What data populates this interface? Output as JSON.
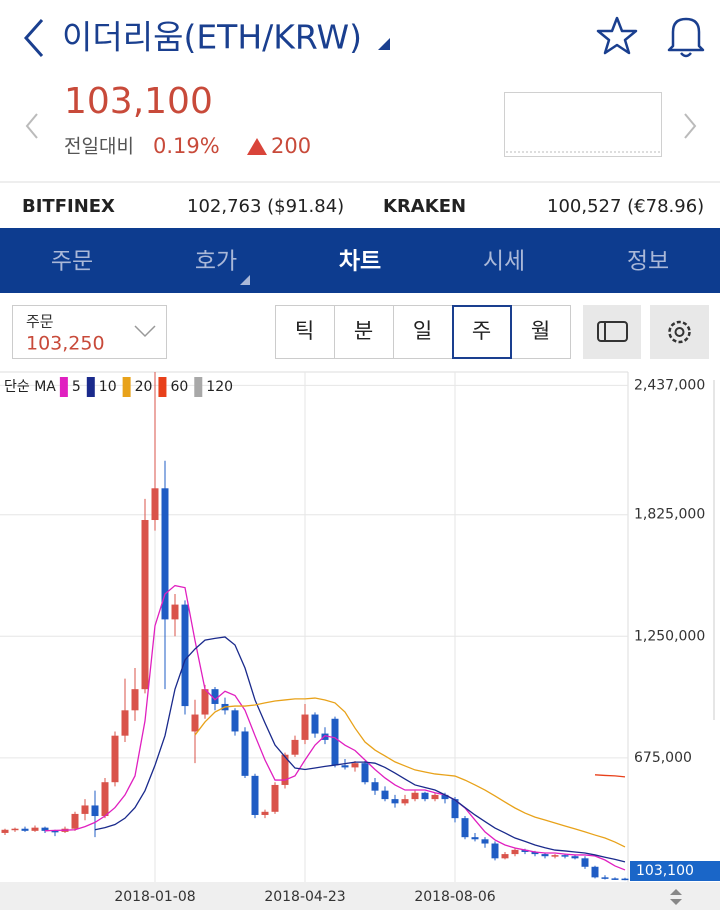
{
  "header": {
    "title": "이더리움(ETH/KRW)"
  },
  "quote": {
    "price": "103,100",
    "change_label": "전일대비",
    "change_percent": "0.19%",
    "change_amount": "200"
  },
  "exchanges": [
    {
      "name": "BITFINEX",
      "price": "102,763 ($91.84)"
    },
    {
      "name": "KRAKEN",
      "price": "100,527 (€78.96)"
    }
  ],
  "tabs": [
    "주문",
    "호가",
    "차트",
    "시세",
    "정보"
  ],
  "order": {
    "label": "주문",
    "price": "103,250"
  },
  "periods": [
    "틱",
    "분",
    "일",
    "주",
    "월"
  ],
  "chart_data": {
    "type": "candlestick",
    "legend_title": "단순 MA",
    "categories": [
      null,
      null,
      null,
      null,
      null,
      null,
      null,
      null,
      null,
      null,
      null,
      null,
      null,
      null,
      null,
      "2018-01-08",
      null,
      null,
      null,
      null,
      null,
      null,
      null,
      null,
      null,
      null,
      null,
      null,
      null,
      null,
      "2018-04-23",
      null,
      null,
      null,
      null,
      null,
      null,
      null,
      null,
      null,
      null,
      null,
      null,
      null,
      null,
      "2018-08-06",
      null,
      null,
      null,
      null,
      null,
      null,
      null,
      null,
      null,
      null,
      null,
      null,
      null,
      null,
      null,
      null,
      null
    ],
    "up_color": "#d9534a",
    "down_color": "#1f5cc4",
    "open": [
      320000,
      335000,
      340000,
      330000,
      345000,
      330000,
      325000,
      340000,
      410000,
      450000,
      400000,
      560000,
      780000,
      900000,
      1000000,
      1800000,
      1950000,
      1330000,
      1400000,
      800000,
      880000,
      1000000,
      930000,
      900000,
      800000,
      590000,
      405000,
      420000,
      547000,
      690000,
      760000,
      880000,
      790000,
      860000,
      640000,
      630000,
      650000,
      560000,
      520000,
      480000,
      460000,
      480000,
      510000,
      480000,
      500000,
      480000,
      390000,
      300000,
      290000,
      270000,
      200000,
      220000,
      240000,
      230000,
      220000,
      210000,
      215000,
      210000,
      200000,
      160000,
      110000,
      105000,
      104000
    ],
    "high": [
      340000,
      345000,
      350000,
      355000,
      350000,
      335000,
      350000,
      420000,
      480000,
      520000,
      580000,
      800000,
      1050000,
      1100000,
      1900000,
      2500000,
      2080000,
      1450000,
      1420000,
      950000,
      1020000,
      1010000,
      960000,
      910000,
      820000,
      600000,
      430000,
      560000,
      700000,
      780000,
      930000,
      890000,
      820000,
      870000,
      670000,
      660000,
      660000,
      580000,
      540000,
      500000,
      500000,
      520000,
      515000,
      510000,
      510000,
      490000,
      400000,
      320000,
      300000,
      280000,
      230000,
      250000,
      245000,
      235000,
      225000,
      220000,
      220000,
      215000,
      210000,
      165000,
      120000,
      110000,
      108000
    ],
    "low": [
      310000,
      325000,
      325000,
      325000,
      320000,
      305000,
      320000,
      330000,
      380000,
      300000,
      390000,
      540000,
      750000,
      850000,
      980000,
      1750000,
      1000000,
      1250000,
      880000,
      650000,
      860000,
      900000,
      880000,
      780000,
      580000,
      390000,
      390000,
      410000,
      530000,
      680000,
      740000,
      770000,
      740000,
      630000,
      620000,
      610000,
      550000,
      500000,
      470000,
      440000,
      450000,
      470000,
      470000,
      470000,
      460000,
      370000,
      290000,
      280000,
      250000,
      190000,
      195000,
      210000,
      220000,
      210000,
      200000,
      200000,
      200000,
      195000,
      150000,
      105000,
      100000,
      98000,
      96000
    ],
    "close": [
      335000,
      340000,
      330000,
      345000,
      330000,
      325000,
      340000,
      410000,
      450000,
      400000,
      560000,
      780000,
      900000,
      1000000,
      1800000,
      1950000,
      1330000,
      1400000,
      920000,
      880000,
      1000000,
      930000,
      900000,
      800000,
      590000,
      405000,
      420000,
      547000,
      690000,
      760000,
      880000,
      790000,
      760000,
      640000,
      630000,
      650000,
      560000,
      520000,
      480000,
      460000,
      480000,
      510000,
      480000,
      500000,
      480000,
      390000,
      300000,
      290000,
      270000,
      200000,
      220000,
      240000,
      230000,
      220000,
      210000,
      215000,
      210000,
      200000,
      160000,
      110000,
      105000,
      104000,
      103100
    ],
    "ma": [
      {
        "name": "5",
        "color": "#e020c0",
        "values": [
          null,
          null,
          null,
          null,
          330000,
          332000,
          333000,
          335000,
          350000,
          370000,
          400000,
          440000,
          500000,
          590000,
          850000,
          1300000,
          1450000,
          1490000,
          1480000,
          1230000,
          1000000,
          950000,
          990000,
          970000,
          900000,
          780000,
          665000,
          570000,
          570000,
          590000,
          665000,
          735000,
          780000,
          770000,
          735000,
          710000,
          665000,
          620000,
          580000,
          547000,
          523000,
          523000,
          523000,
          510000,
          500000,
          476000,
          438000,
          381000,
          325000,
          287000,
          263000,
          249000,
          239000,
          230000,
          225000,
          225000,
          220000,
          216000,
          216000,
          211000,
          192000,
          164000,
          145000
        ]
      },
      {
        "name": "10",
        "color": "#1a2a8c",
        "values": [
          null,
          null,
          null,
          null,
          null,
          null,
          null,
          null,
          null,
          335000,
          345000,
          360000,
          390000,
          440000,
          520000,
          640000,
          780000,
          1000000,
          1138000,
          1190000,
          1232000,
          1240000,
          1247000,
          1209000,
          1100000,
          949000,
          840000,
          736000,
          680000,
          627000,
          620000,
          627000,
          635000,
          641000,
          648000,
          655000,
          655000,
          650000,
          630000,
          603000,
          575000,
          547000,
          535000,
          523000,
          500000,
          476000,
          440000,
          405000,
          374000,
          343000,
          320000,
          296000,
          280000,
          263000,
          250000,
          239000,
          235000,
          230000,
          225000,
          216000,
          205000,
          195000,
          183000
        ]
      },
      {
        "name": "20",
        "color": "#e8a21a",
        "values": [
          null,
          null,
          null,
          null,
          null,
          null,
          null,
          null,
          null,
          null,
          null,
          null,
          null,
          null,
          null,
          null,
          null,
          null,
          null,
          783000,
          845000,
          892000,
          916000,
          920000,
          920000,
          925000,
          935000,
          944000,
          949000,
          954000,
          954000,
          958000,
          949000,
          935000,
          892000,
          816000,
          750000,
          712000,
          684000,
          656000,
          637000,
          618000,
          608000,
          599000,
          594000,
          589000,
          570000,
          547000,
          523000,
          495000,
          466000,
          438000,
          414000,
          395000,
          381000,
          367000,
          353000,
          339000,
          325000,
          310000,
          296000,
          277000,
          254000
        ]
      },
      {
        "name": "60",
        "color": "#e8401a",
        "values": [
          null,
          null,
          null,
          null,
          null,
          null,
          null,
          null,
          null,
          null,
          null,
          null,
          null,
          null,
          null,
          null,
          null,
          null,
          null,
          null,
          null,
          null,
          null,
          null,
          null,
          null,
          null,
          null,
          null,
          null,
          null,
          null,
          null,
          null,
          null,
          null,
          null,
          null,
          null,
          null,
          null,
          null,
          null,
          null,
          null,
          null,
          null,
          null,
          null,
          null,
          null,
          null,
          null,
          null,
          null,
          null,
          null,
          null,
          null,
          595000,
          592000,
          590000,
          585000
        ]
      },
      {
        "name": "120",
        "color": "#a8a8a8",
        "values": [
          null,
          null,
          null,
          null,
          null,
          null,
          null,
          null,
          null,
          null,
          null,
          null,
          null,
          null,
          null,
          null,
          null,
          null,
          null,
          null,
          null,
          null,
          null,
          null,
          null,
          null,
          null,
          null,
          null,
          null,
          null,
          null,
          null,
          null,
          null,
          null,
          null,
          null,
          null,
          null,
          null,
          null,
          null,
          null,
          null,
          null,
          null,
          null,
          null,
          null,
          null,
          null,
          null,
          null,
          null,
          null,
          null,
          null,
          null,
          null,
          null,
          null,
          null
        ]
      }
    ],
    "last_price": {
      "value": 103100,
      "label": "103,100"
    },
    "ylim": [
      88000,
      2500000
    ],
    "yticks": [
      {
        "value": 2437000,
        "label": "2,437,000"
      },
      {
        "value": 1825000,
        "label": "1,825,000"
      },
      {
        "value": 1250000,
        "label": "1,250,000"
      },
      {
        "value": 675000,
        "label": "675,000"
      }
    ],
    "grid": true
  }
}
